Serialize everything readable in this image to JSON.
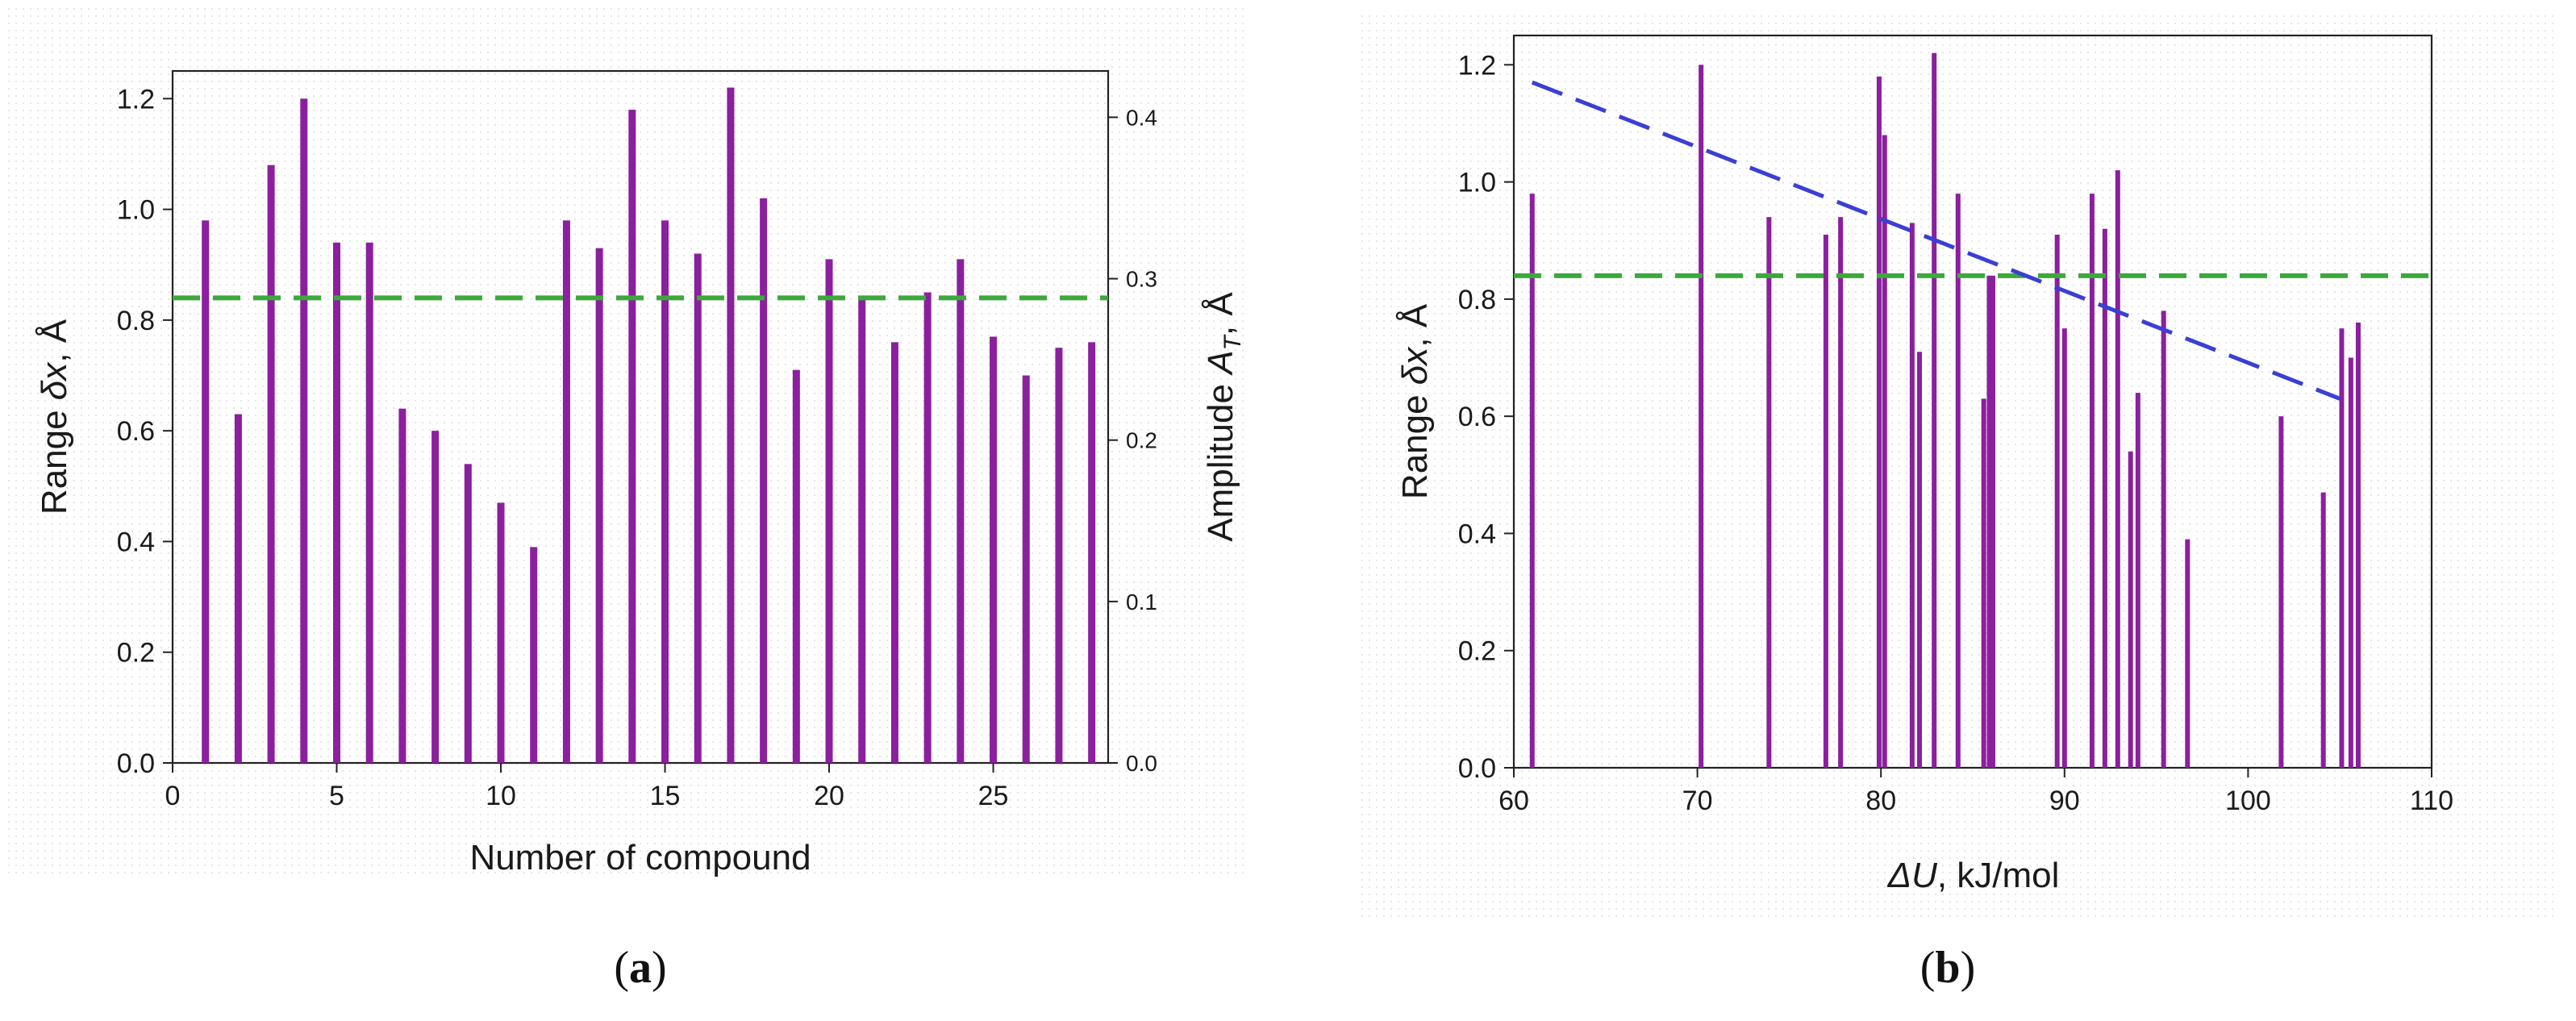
{
  "colors": {
    "bar": "#8b1f9e",
    "threshold": "#3ba93b",
    "trend": "#3a3fd4",
    "axis": "#222222",
    "gridDot": "#d0d0d0"
  },
  "chart_data": [
    {
      "type": "bar",
      "caption": {
        "open": "(",
        "letter": "a",
        "close": ")"
      },
      "xlabel": "Number of compound",
      "ylabel": {
        "main": "Range ",
        "sym": "δx",
        "unit": ", Å"
      },
      "y2label": {
        "main": "Amplitude ",
        "sym": "A",
        "sub": "T",
        "unit": ", Å"
      },
      "xlim": [
        0,
        28.5
      ],
      "ylim": [
        0,
        1.25
      ],
      "y2lim": [
        0,
        0.4287
      ],
      "xticks": [
        "0",
        "5",
        "10",
        "15",
        "20",
        "25"
      ],
      "xtick_values": [
        0,
        5,
        10,
        15,
        20,
        25
      ],
      "yticks": [
        "0.0",
        "0.2",
        "0.4",
        "0.6",
        "0.8",
        "1.0",
        "1.2"
      ],
      "ytick_values": [
        0,
        0.2,
        0.4,
        0.6,
        0.8,
        1.0,
        1.2
      ],
      "y2ticks": [
        "0.0",
        "0.1",
        "0.2",
        "0.3",
        "0.4"
      ],
      "y2tick_values": [
        0,
        0.1,
        0.2,
        0.3,
        0.4
      ],
      "x": [
        1,
        2,
        3,
        4,
        5,
        6,
        7,
        8,
        9,
        10,
        11,
        12,
        13,
        14,
        15,
        16,
        17,
        18,
        19,
        20,
        21,
        22,
        23,
        24,
        25,
        26,
        27,
        28
      ],
      "values": [
        0.98,
        0.63,
        1.08,
        1.2,
        0.94,
        0.94,
        0.64,
        0.6,
        0.54,
        0.47,
        0.39,
        0.98,
        0.93,
        1.18,
        0.98,
        0.92,
        1.22,
        1.02,
        0.71,
        0.91,
        0.84,
        0.76,
        0.85,
        0.91,
        0.77,
        0.7,
        0.75,
        0.76
      ],
      "threshold": 0.84
    },
    {
      "type": "bar",
      "caption": {
        "open": "(",
        "letter": "b",
        "close": ")"
      },
      "xlabel": {
        "sym": "ΔU",
        "unit": ", kJ/mol"
      },
      "ylabel": {
        "main": "Range ",
        "sym": "δx",
        "unit": ", Å"
      },
      "xlim": [
        60,
        110
      ],
      "ylim": [
        0,
        1.25
      ],
      "xticks": [
        "60",
        "70",
        "80",
        "90",
        "100",
        "110"
      ],
      "xtick_values": [
        60,
        70,
        80,
        90,
        100,
        110
      ],
      "yticks": [
        "0.0",
        "0.2",
        "0.4",
        "0.6",
        "0.8",
        "1.0",
        "1.2"
      ],
      "ytick_values": [
        0,
        0.2,
        0.4,
        0.6,
        0.8,
        1.0,
        1.2
      ],
      "x": [
        61.0,
        70.2,
        73.9,
        77.0,
        77.8,
        79.9,
        80.2,
        81.7,
        82.1,
        82.9,
        84.2,
        85.6,
        85.9,
        86.1,
        89.6,
        90.0,
        91.5,
        92.2,
        92.9,
        93.6,
        94.0,
        95.4,
        96.7,
        101.8,
        104.1,
        105.1,
        105.6,
        106.0
      ],
      "values": [
        0.98,
        1.2,
        0.94,
        0.91,
        0.94,
        1.18,
        1.08,
        0.93,
        0.71,
        1.22,
        0.98,
        0.63,
        0.84,
        0.84,
        0.91,
        0.75,
        0.98,
        0.92,
        1.02,
        0.54,
        0.64,
        0.78,
        0.39,
        0.6,
        0.47,
        0.75,
        0.7,
        0.76
      ],
      "threshold": 0.84,
      "trend": {
        "x": [
          61,
          105
        ],
        "y": [
          1.17,
          0.63
        ]
      }
    }
  ]
}
